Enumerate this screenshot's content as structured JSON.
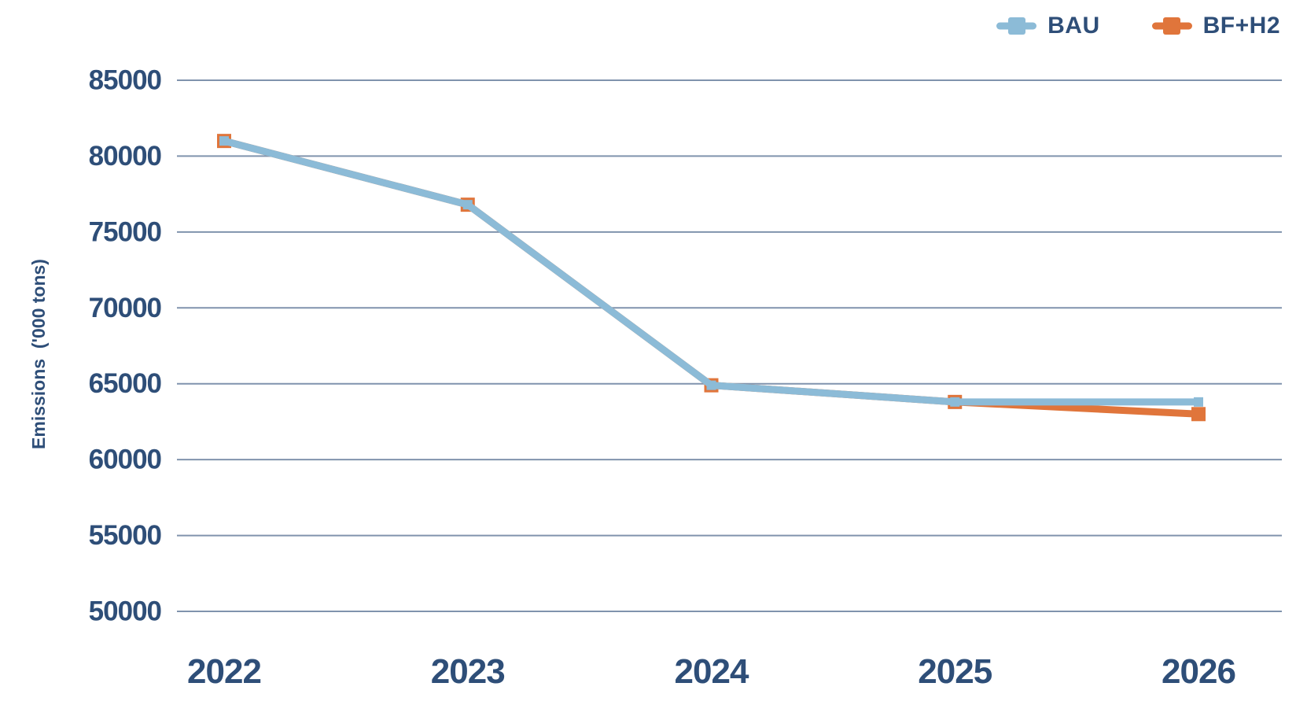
{
  "chart_data": {
    "type": "line",
    "title": "",
    "categories": [
      "2022",
      "2023",
      "2024",
      "2025",
      "2026"
    ],
    "series": [
      {
        "name": "BAU",
        "color": "#8CBBD7",
        "values": [
          81000,
          76800,
          64900,
          63800,
          63800
        ]
      },
      {
        "name": "BF+H2",
        "color": "#E0753B",
        "values": [
          81000,
          76800,
          64900,
          63800,
          63000
        ]
      }
    ],
    "xlabel": "",
    "ylabel": "Emissions  ('000 tons)",
    "ylim": [
      50000,
      85000
    ],
    "yticks": [
      85000,
      80000,
      75000,
      70000,
      65000,
      60000,
      55000,
      50000
    ],
    "grid": true,
    "legend_position": "top-right",
    "marker": "square",
    "colors": {
      "text": "#2E4E78",
      "gridline": "#8093AD",
      "background": "#FFFFFF"
    }
  }
}
